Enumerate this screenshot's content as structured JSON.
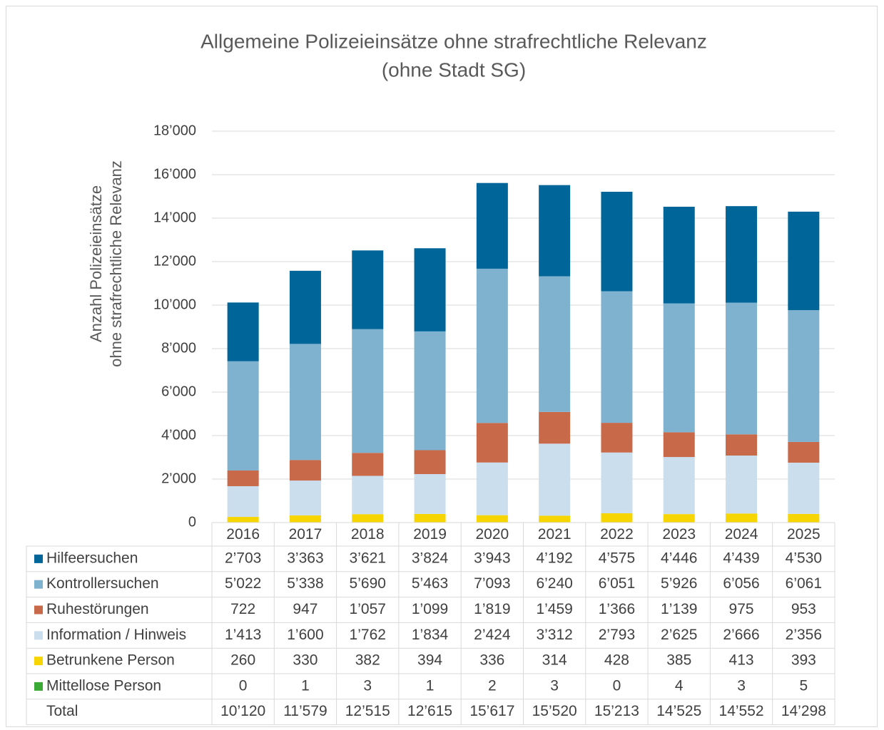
{
  "chart_data": {
    "type": "stacked_bar",
    "title": "Allgemeine Polizeieinsätze ohne strafrechtliche Relevanz",
    "subtitle": "(ohne Stadt SG)",
    "ylabel": [
      "Anzahl Polizeieinsätze",
      "ohne strafrechtliche Relevanz"
    ],
    "categories": [
      "2016",
      "2017",
      "2018",
      "2019",
      "2020",
      "2021",
      "2022",
      "2023",
      "2024",
      "2025"
    ],
    "ylim": [
      0,
      18000
    ],
    "yticks": [
      0,
      {
        "value": 2000,
        "label": "2’000"
      },
      {
        "value": 4000,
        "label": "4’000"
      },
      {
        "value": 6000,
        "label": "6’000"
      },
      {
        "value": 8000,
        "label": "8’000"
      },
      {
        "value": 10000,
        "label": "10’000"
      },
      {
        "value": 12000,
        "label": "12’000"
      },
      {
        "value": 14000,
        "label": "14’000"
      },
      {
        "value": 16000,
        "label": "16’000"
      },
      {
        "value": 18000,
        "label": "18’000"
      }
    ],
    "grid": true,
    "series": [
      {
        "name": "Hilfeersuchen",
        "color": "#00669a",
        "values": [
          2703,
          3363,
          3621,
          3824,
          3943,
          4192,
          4575,
          4446,
          4439,
          4530
        ],
        "value_labels": [
          "2’703",
          "3’363",
          "3’621",
          "3’824",
          "3’943",
          "4’192",
          "4’575",
          "4’446",
          "4’439",
          "4’530"
        ]
      },
      {
        "name": "Kontrollersuchen",
        "color": "#7fb2cf",
        "values": [
          5022,
          5338,
          5690,
          5463,
          7093,
          6240,
          6051,
          5926,
          6056,
          6061
        ],
        "value_labels": [
          "5’022",
          "5’338",
          "5’690",
          "5’463",
          "7’093",
          "6’240",
          "6’051",
          "5’926",
          "6’056",
          "6’061"
        ]
      },
      {
        "name": "Ruhestörungen",
        "color": "#c8694a",
        "values": [
          722,
          947,
          1057,
          1099,
          1819,
          1459,
          1366,
          1139,
          975,
          953
        ],
        "value_labels": [
          "722",
          "947",
          "1’057",
          "1’099",
          "1’819",
          "1’459",
          "1’366",
          "1’139",
          "975",
          "953"
        ]
      },
      {
        "name": "Information / Hinweis",
        "color": "#cadeee",
        "values": [
          1413,
          1600,
          1762,
          1834,
          2424,
          3312,
          2793,
          2625,
          2666,
          2356
        ],
        "value_labels": [
          "1’413",
          "1’600",
          "1’762",
          "1’834",
          "2’424",
          "3’312",
          "2’793",
          "2’625",
          "2’666",
          "2’356"
        ]
      },
      {
        "name": "Betrunkene Person",
        "color": "#f7d500",
        "values": [
          260,
          330,
          382,
          394,
          336,
          314,
          428,
          385,
          413,
          393
        ],
        "value_labels": [
          "260",
          "330",
          "382",
          "394",
          "336",
          "314",
          "428",
          "385",
          "413",
          "393"
        ]
      },
      {
        "name": "Mittellose Person",
        "color": "#3aa935",
        "values": [
          0,
          1,
          3,
          1,
          2,
          3,
          0,
          4,
          3,
          5
        ],
        "value_labels": [
          "0",
          "1",
          "3",
          "1",
          "2",
          "3",
          "0",
          "4",
          "3",
          "5"
        ]
      }
    ],
    "total_name": "Total",
    "totals": [
      10120,
      11579,
      12515,
      12615,
      15617,
      15520,
      15213,
      14525,
      14552,
      14298
    ],
    "total_labels": [
      "10’120",
      "11’579",
      "12’515",
      "12’615",
      "15’617",
      "15’520",
      "15’213",
      "14’525",
      "14’552",
      "14’298"
    ]
  }
}
